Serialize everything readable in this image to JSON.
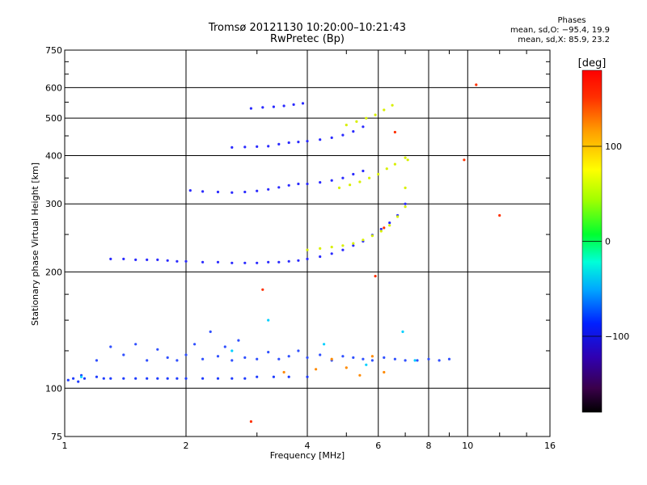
{
  "chart_data": {
    "type": "scatter",
    "title": "Tromsø 20121130 10:20:00–10:21:43",
    "subtitle": "RwPretec (Bp)",
    "xlabel": "Frequency [MHz]",
    "ylabel": "Stationary phase Virtual Height [km]",
    "x_scale": "log",
    "y_scale": "log",
    "xlim": [
      1,
      16
    ],
    "ylim": [
      75,
      750
    ],
    "x_ticks": [
      1,
      2,
      4,
      6,
      8,
      10,
      16
    ],
    "x_tick_labels": [
      "1",
      "2",
      "4",
      "6",
      "8",
      "10",
      "16"
    ],
    "y_ticks": [
      75,
      100,
      200,
      300,
      400,
      500,
      600,
      750
    ],
    "y_tick_labels": [
      "75",
      "100",
      "200",
      "300",
      "400",
      "500",
      "600",
      "750"
    ],
    "grid": true,
    "phases_header": "Phases",
    "phases_O": "mean, sd,O: −95.4, 19.9",
    "phases_X": "mean, sd,X:  85.9, 23.2",
    "colorbar": {
      "label": "[deg]",
      "range": [
        -180,
        180
      ],
      "ticks": [
        100,
        0,
        -100
      ],
      "tick_labels": [
        "100",
        "0",
        "−100"
      ]
    },
    "series": [
      {
        "color": "#1f3cff",
        "x": [
          1.02,
          1.05,
          1.08,
          1.1,
          1.12,
          1.2,
          1.25,
          1.3,
          1.4,
          1.5,
          1.6,
          1.7,
          1.8,
          1.9,
          2.0,
          2.2,
          2.4,
          2.6,
          2.8,
          3.0,
          3.3,
          3.6,
          4.0
        ],
        "y": [
          105,
          106,
          104,
          108,
          106,
          107,
          106,
          106,
          106,
          106,
          106,
          106,
          106,
          106,
          106,
          106,
          106,
          106,
          106,
          107,
          107,
          107,
          107
        ]
      },
      {
        "color": "#2a2aff",
        "x": [
          1.3,
          1.4,
          1.5,
          1.6,
          1.7,
          1.8,
          1.9,
          2.0,
          2.2,
          2.4,
          2.6,
          2.8,
          3.0,
          3.2,
          3.4,
          3.6,
          3.8,
          4.0,
          4.3,
          4.6,
          4.9,
          5.2,
          5.5,
          5.8,
          6.1,
          6.4,
          6.7,
          7.0
        ],
        "y": [
          216,
          216,
          215,
          215,
          215,
          214,
          213,
          213,
          212,
          212,
          211,
          211,
          211,
          212,
          212,
          213,
          214,
          216,
          219,
          223,
          228,
          234,
          240,
          249,
          258,
          268,
          280,
          300
        ]
      },
      {
        "color": "#d8f000",
        "x": [
          4.0,
          4.3,
          4.6,
          4.9,
          5.2,
          5.5,
          5.8,
          6.1,
          6.4,
          6.7,
          7.0,
          7.0,
          7.1
        ],
        "y": [
          228,
          230,
          232,
          234,
          237,
          242,
          248,
          255,
          264,
          278,
          295,
          330,
          390
        ]
      },
      {
        "color": "#2a2aff",
        "x": [
          2.05,
          2.2,
          2.4,
          2.6,
          2.8,
          3.0,
          3.2,
          3.4,
          3.6,
          3.8,
          4.0,
          4.3,
          4.6,
          4.9,
          5.2,
          5.5
        ],
        "y": [
          325,
          323,
          322,
          321,
          322,
          324,
          327,
          331,
          335,
          338,
          338,
          341,
          345,
          350,
          358,
          365
        ]
      },
      {
        "color": "#d8f000",
        "x": [
          4.8,
          5.1,
          5.4,
          5.7,
          6.0,
          6.3,
          6.6,
          7.0
        ],
        "y": [
          330,
          336,
          342,
          350,
          358,
          370,
          380,
          395
        ]
      },
      {
        "color": "#2a2aff",
        "x": [
          2.6,
          2.8,
          3.0,
          3.2,
          3.4,
          3.6,
          3.8,
          4.0,
          4.3,
          4.6,
          4.9,
          5.2,
          5.5
        ],
        "y": [
          420,
          421,
          422,
          423,
          428,
          432,
          434,
          436,
          440,
          445,
          452,
          462,
          475
        ]
      },
      {
        "color": "#d8f000",
        "x": [
          5.0,
          5.3,
          5.6,
          5.9,
          6.2,
          6.5
        ],
        "y": [
          480,
          490,
          500,
          510,
          525,
          540
        ]
      },
      {
        "color": "#2a2aff",
        "x": [
          2.9,
          3.1,
          3.3,
          3.5,
          3.7,
          3.9
        ],
        "y": [
          530,
          533,
          535,
          538,
          542,
          546
        ]
      },
      {
        "color": "#3050ff",
        "x": [
          1.2,
          1.3,
          1.4,
          1.5,
          1.6,
          1.7,
          1.8,
          1.9,
          2.0,
          2.1,
          2.2,
          2.3,
          2.4,
          2.5,
          2.6,
          2.7,
          2.8,
          3.0,
          3.2,
          3.4,
          3.6,
          3.8,
          4.0,
          4.3,
          4.6,
          4.9,
          5.2,
          5.5,
          5.8,
          6.2,
          6.6,
          7.0,
          7.5,
          8.0,
          8.5,
          9.0
        ],
        "y": [
          118,
          128,
          122,
          130,
          118,
          126,
          120,
          118,
          122,
          130,
          119,
          140,
          121,
          128,
          118,
          133,
          120,
          119,
          124,
          119,
          121,
          125,
          120,
          122,
          118,
          121,
          120,
          119,
          118,
          120,
          119,
          118,
          118,
          119,
          118,
          119
        ]
      },
      {
        "color": "#ff8a00",
        "x": [
          3.5,
          4.2,
          4.6,
          5.0,
          5.4,
          5.8,
          6.2
        ],
        "y": [
          110,
          112,
          119,
          113,
          108,
          121,
          110
        ]
      },
      {
        "color": "#00d0ff",
        "x": [
          1.1,
          2.6,
          3.2,
          4.4,
          5.6,
          6.9,
          7.4
        ],
        "y": [
          107,
          125,
          150,
          130,
          115,
          140,
          118
        ]
      },
      {
        "color": "#ff3000",
        "x": [
          2.9,
          3.1,
          5.9,
          6.2,
          6.6,
          9.8,
          10.5,
          12.0
        ],
        "y": [
          82,
          180,
          195,
          260,
          460,
          390,
          610,
          280
        ]
      }
    ]
  }
}
